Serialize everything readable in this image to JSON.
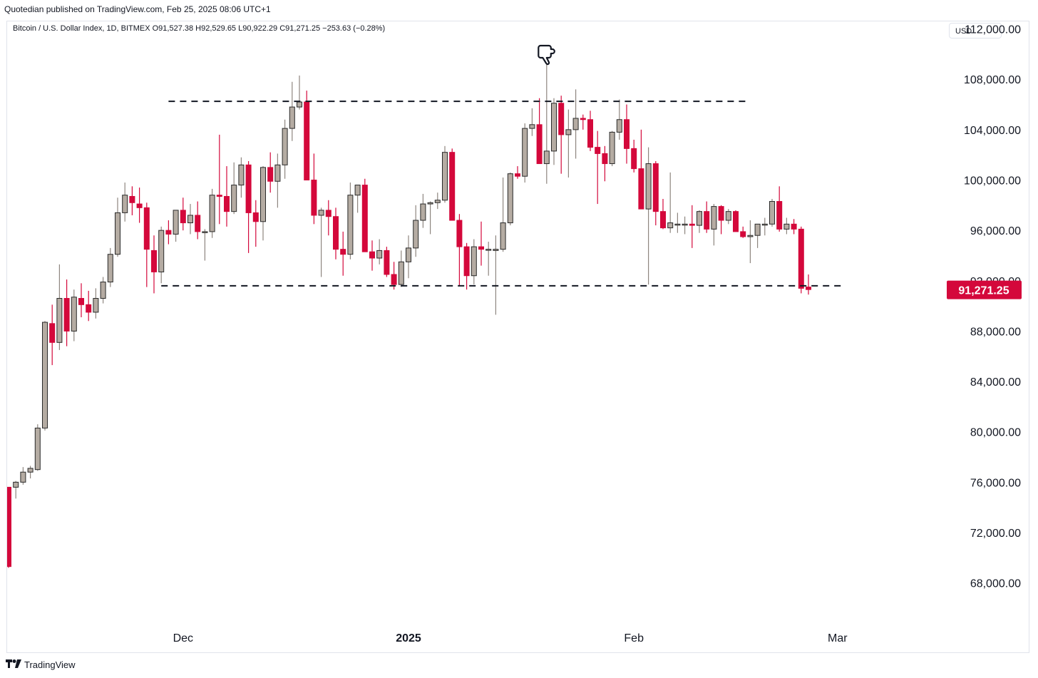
{
  "header": {
    "published": "Quotedian published on TradingView.com, Feb 25, 2025 08:06 UTC+1",
    "symbol_line": "Bitcoin / U.S. Dollar Index, 1D, BITMEX  O91,527.38  H92,529.65  L90,922.29  C91,271.25  −253.63 (−0.28%)",
    "currency": "USD"
  },
  "footer": {
    "brand": "TradingView",
    "logo_icon": "tradingview-logo-icon"
  },
  "colors": {
    "up": "#b5aca3",
    "down": "#d4083b",
    "wick_up": "#8e867f",
    "wick_down": "#d4083b",
    "price_label": "#d4083b"
  },
  "chart_data": {
    "type": "candlestick",
    "title": "Bitcoin / U.S. Dollar Index, 1D, BITMEX",
    "ylim": [
      65600,
      112600
    ],
    "y_ticks": [
      68000,
      72000,
      76000,
      80000,
      84000,
      88000,
      92000,
      96000,
      100000,
      104000,
      108000,
      112000
    ],
    "y_tick_labels": [
      "68,000.00",
      "72,000.00",
      "76,000.00",
      "80,000.00",
      "84,000.00",
      "88,000.00",
      "92,000.00",
      "96,000.00",
      "100,000.00",
      "104,000.00",
      "108,000.00",
      "112,000.00"
    ],
    "x_labels": [
      {
        "label": "Dec",
        "index": 24
      },
      {
        "label": "2025",
        "index": 55
      },
      {
        "label": "Feb",
        "index": 86
      },
      {
        "label": "Mar",
        "index": 114
      }
    ],
    "last_price": {
      "value": 91271.25,
      "label": "91,271.25"
    },
    "horizontal_lines": [
      {
        "style": "dashed",
        "value": 106250,
        "from_index": 22,
        "to_index": 102
      },
      {
        "style": "dashed",
        "value": 91600,
        "from_index": 21,
        "to_index": 115
      }
    ],
    "annotation": {
      "icon": "pointing-hand-icon",
      "index": 74,
      "value": 112000
    },
    "candles": [
      [
        75600,
        75600,
        69200,
        69300
      ],
      [
        75600,
        76100,
        74700,
        76000
      ],
      [
        76000,
        77200,
        75800,
        76800
      ],
      [
        76800,
        77300,
        76300,
        77100
      ],
      [
        77000,
        80600,
        76900,
        80300
      ],
      [
        80300,
        88800,
        80100,
        88700
      ],
      [
        88600,
        90100,
        85300,
        87100
      ],
      [
        87100,
        93300,
        86500,
        90600
      ],
      [
        90600,
        92100,
        86800,
        88000
      ],
      [
        88000,
        91300,
        87200,
        90700
      ],
      [
        90600,
        91800,
        89100,
        90100
      ],
      [
        90100,
        91200,
        88800,
        89500
      ],
      [
        89500,
        91400,
        89000,
        90600
      ],
      [
        90600,
        92300,
        90200,
        91900
      ],
      [
        91900,
        94600,
        91500,
        94100
      ],
      [
        94100,
        98600,
        93900,
        97400
      ],
      [
        97400,
        99800,
        96700,
        98800
      ],
      [
        98700,
        99500,
        97200,
        98200
      ],
      [
        98100,
        99400,
        96600,
        97800
      ],
      [
        97800,
        98200,
        91500,
        94500
      ],
      [
        94400,
        95600,
        91000,
        92700
      ],
      [
        92700,
        96300,
        91800,
        96000
      ],
      [
        96000,
        96800,
        94900,
        95700
      ],
      [
        95700,
        97600,
        95100,
        97600
      ],
      [
        97600,
        98600,
        96000,
        96600
      ],
      [
        96600,
        98100,
        95700,
        97200
      ],
      [
        97200,
        98300,
        95300,
        95900
      ],
      [
        95900,
        96100,
        93600,
        95900
      ],
      [
        95900,
        99300,
        95400,
        98800
      ],
      [
        98800,
        103600,
        96500,
        98700
      ],
      [
        98700,
        101100,
        96300,
        97500
      ],
      [
        97500,
        101400,
        97300,
        99600
      ],
      [
        99600,
        101800,
        98600,
        101200
      ],
      [
        101200,
        101500,
        94200,
        97400
      ],
      [
        97400,
        98400,
        94700,
        96700
      ],
      [
        96700,
        101100,
        95200,
        101000
      ],
      [
        101000,
        102200,
        99000,
        99900
      ],
      [
        99900,
        102100,
        97800,
        101200
      ],
      [
        101200,
        104800,
        100100,
        104100
      ],
      [
        104100,
        107800,
        103100,
        105800
      ],
      [
        105800,
        108300,
        105600,
        106200
      ],
      [
        106200,
        107100,
        100000,
        100000
      ],
      [
        100000,
        102100,
        96500,
        97200
      ],
      [
        97200,
        97800,
        92300,
        97600
      ],
      [
        97600,
        98400,
        95600,
        97100
      ],
      [
        97100,
        97800,
        93700,
        94500
      ],
      [
        94500,
        95900,
        92400,
        94100
      ],
      [
        94100,
        99800,
        93700,
        98800
      ],
      [
        98800,
        99600,
        97400,
        99600
      ],
      [
        99600,
        100100,
        94500,
        94300
      ],
      [
        94300,
        95200,
        92800,
        93800
      ],
      [
        93800,
        95300,
        93300,
        94400
      ],
      [
        94400,
        94700,
        92300,
        92500
      ],
      [
        92500,
        93500,
        91300,
        91700
      ],
      [
        91700,
        94400,
        91500,
        93500
      ],
      [
        93500,
        95600,
        92200,
        94600
      ],
      [
        94600,
        98000,
        93900,
        96800
      ],
      [
        96800,
        98900,
        96200,
        98100
      ],
      [
        98100,
        98300,
        95700,
        98200
      ],
      [
        98200,
        99000,
        97700,
        98400
      ],
      [
        98400,
        102700,
        98200,
        102200
      ],
      [
        102200,
        102500,
        96800,
        96800
      ],
      [
        96800,
        97300,
        91600,
        94700
      ],
      [
        94700,
        95000,
        91300,
        92400
      ],
      [
        92400,
        95300,
        91700,
        94700
      ],
      [
        94700,
        96700,
        93200,
        94500
      ],
      [
        94500,
        95100,
        92400,
        94500
      ],
      [
        94400,
        95600,
        89300,
        94500
      ],
      [
        94500,
        100200,
        94300,
        96600
      ],
      [
        96600,
        100600,
        96400,
        100500
      ],
      [
        100500,
        101100,
        100100,
        100300
      ],
      [
        100300,
        104500,
        99800,
        104100
      ],
      [
        104100,
        105700,
        103500,
        104400
      ],
      [
        104400,
        106500,
        101300,
        101300
      ],
      [
        101300,
        109300,
        99700,
        102300
      ],
      [
        102300,
        106500,
        101200,
        106100
      ],
      [
        106100,
        106700,
        100500,
        103600
      ],
      [
        103600,
        105600,
        100200,
        104000
      ],
      [
        104000,
        107200,
        101700,
        104900
      ],
      [
        104900,
        105200,
        104000,
        104800
      ],
      [
        104800,
        105500,
        102300,
        102600
      ],
      [
        102600,
        103900,
        98100,
        102100
      ],
      [
        102100,
        102700,
        99900,
        101300
      ],
      [
        101300,
        103900,
        101100,
        103800
      ],
      [
        103800,
        106400,
        103200,
        104800
      ],
      [
        104800,
        106000,
        101300,
        102500
      ],
      [
        102500,
        103200,
        100600,
        100900
      ],
      [
        100900,
        104000,
        97800,
        97700
      ],
      [
        97700,
        102600,
        91700,
        101300
      ],
      [
        101300,
        101500,
        96400,
        97500
      ],
      [
        97500,
        98500,
        96100,
        96200
      ],
      [
        96200,
        100600,
        95800,
        96600
      ],
      [
        96500,
        97400,
        95800,
        96500
      ],
      [
        96500,
        97100,
        95700,
        96500
      ],
      [
        96500,
        98000,
        94600,
        96400
      ],
      [
        96400,
        97600,
        95800,
        97500
      ],
      [
        97500,
        98300,
        95800,
        96100
      ],
      [
        96100,
        98100,
        94800,
        97900
      ],
      [
        97900,
        98000,
        95700,
        96800
      ],
      [
        96800,
        97700,
        96500,
        97500
      ],
      [
        97500,
        97600,
        95900,
        95900
      ],
      [
        95900,
        96300,
        95400,
        95500
      ],
      [
        95500,
        96800,
        93400,
        95600
      ],
      [
        95600,
        96400,
        94600,
        96500
      ],
      [
        96500,
        97000,
        95600,
        96500
      ],
      [
        96500,
        98500,
        96300,
        98300
      ],
      [
        98300,
        99500,
        95900,
        96100
      ],
      [
        96100,
        97000,
        95700,
        96500
      ],
      [
        96500,
        96900,
        95700,
        96100
      ],
      [
        96100,
        96300,
        91000,
        91400
      ],
      [
        91500,
        92500,
        90900,
        91300
      ]
    ]
  }
}
